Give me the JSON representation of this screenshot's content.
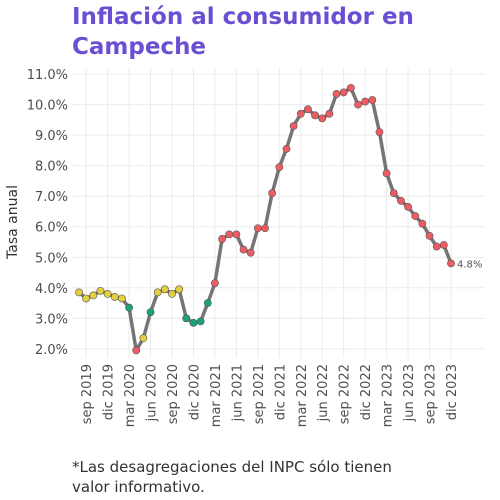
{
  "chart_data": {
    "type": "line",
    "title": [
      "Inflación al consumidor en",
      "Campeche"
    ],
    "ylabel": "Tasa anual",
    "footnote": [
      "*Las desagregaciones del INPC sólo tienen",
      "valor informativo."
    ],
    "categories": [
      null,
      "sep 2019",
      null,
      null,
      "dic 2019",
      null,
      null,
      "mar 2020",
      null,
      null,
      "jun 2020",
      null,
      null,
      "sep 2020",
      null,
      null,
      "dic 2020",
      null,
      null,
      "mar 2021",
      null,
      null,
      "jun 2021",
      null,
      null,
      "sep 2021",
      null,
      null,
      "dic 2021",
      null,
      null,
      "mar 2022",
      null,
      null,
      "jun 2022",
      null,
      null,
      "sep 2022",
      null,
      null,
      "dic 2022",
      null,
      null,
      "mar 2023",
      null,
      null,
      "jun 2023",
      null,
      null,
      "sep 2023",
      null,
      null,
      "dic 2023"
    ],
    "series": [
      {
        "name": "Tasa anual",
        "color": "#757575",
        "values": [
          3.85,
          3.65,
          3.75,
          3.9,
          3.8,
          3.7,
          3.65,
          3.35,
          1.95,
          2.35,
          3.2,
          3.85,
          3.95,
          3.8,
          3.95,
          3.0,
          2.85,
          2.9,
          3.5,
          4.15,
          5.6,
          5.75,
          5.75,
          5.25,
          5.15,
          5.95,
          5.95,
          7.1,
          7.95,
          8.55,
          9.3,
          9.7,
          9.85,
          9.65,
          9.55,
          9.7,
          10.35,
          10.4,
          10.55,
          10.0,
          10.1,
          10.15,
          9.1,
          7.75,
          7.1,
          6.85,
          6.65,
          6.35,
          6.1,
          5.7,
          5.35,
          5.4,
          4.8
        ],
        "point_colors": [
          "#e3cf3f",
          "#e3cf3f",
          "#e3cf3f",
          "#e3cf3f",
          "#e3cf3f",
          "#e3cf3f",
          "#e3cf3f",
          "#1aa37a",
          "#ee5c63",
          "#e3cf3f",
          "#1aa37a",
          "#e3cf3f",
          "#e3cf3f",
          "#e3cf3f",
          "#e3cf3f",
          "#1aa37a",
          "#1aa37a",
          "#1aa37a",
          "#1aa37a",
          "#ee5c63",
          "#ee5c63",
          "#ee5c63",
          "#ee5c63",
          "#ee5c63",
          "#ee5c63",
          "#ee5c63",
          "#ee5c63",
          "#ee5c63",
          "#ee5c63",
          "#ee5c63",
          "#ee5c63",
          "#ee5c63",
          "#ee5c63",
          "#ee5c63",
          "#ee5c63",
          "#ee5c63",
          "#ee5c63",
          "#ee5c63",
          "#ee5c63",
          "#ee5c63",
          "#ee5c63",
          "#ee5c63",
          "#ee5c63",
          "#ee5c63",
          "#ee5c63",
          "#ee5c63",
          "#ee5c63",
          "#ee5c63",
          "#ee5c63",
          "#ee5c63",
          "#ee5c63",
          "#ee5c63",
          "#ee5c63"
        ],
        "value_labels": [
          null,
          null,
          null,
          null,
          null,
          null,
          null,
          null,
          null,
          null,
          null,
          null,
          null,
          null,
          null,
          null,
          null,
          null,
          null,
          null,
          null,
          null,
          null,
          null,
          null,
          null,
          null,
          null,
          null,
          null,
          null,
          null,
          null,
          null,
          null,
          null,
          null,
          null,
          null,
          null,
          null,
          null,
          null,
          null,
          null,
          null,
          null,
          null,
          null,
          null,
          null,
          null,
          "4.8%"
        ]
      }
    ],
    "title_color": "#6a4fd3",
    "ylim": [
      1.7,
      11.2
    ],
    "yticks": [
      {
        "value": 2,
        "label": "2.0%"
      },
      {
        "value": 3,
        "label": "3.0%"
      },
      {
        "value": 4,
        "label": "4.0%"
      },
      {
        "value": 5,
        "label": "5.0%"
      },
      {
        "value": 6,
        "label": "6.0%"
      },
      {
        "value": 7,
        "label": "7.0%"
      },
      {
        "value": 8,
        "label": "8.0%"
      },
      {
        "value": 9,
        "label": "9.0%"
      },
      {
        "value": 10,
        "label": "10.0%"
      },
      {
        "value": 11,
        "label": "11.0%"
      }
    ],
    "grid": true
  }
}
